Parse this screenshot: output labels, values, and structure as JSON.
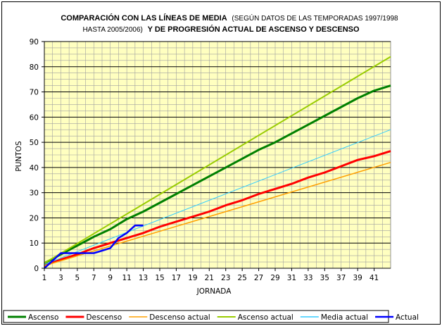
{
  "chart_data": {
    "type": "line",
    "title_part1": "COMPARACIÓN CON LAS LÍNEAS DE MEDIA",
    "title_part2": "(SEGÚN DATOS DE LAS TEMPORADAS 1997/1998",
    "title_part3": "HASTA 2005/2006)",
    "title_part4": "Y DE PROGRESIÓN ACTUAL DE ASCENSO Y DESCENSO",
    "xlabel": "JORNADA",
    "ylabel": "PUNTOS",
    "xlim": [
      1,
      43
    ],
    "ylim": [
      0,
      90
    ],
    "x_ticks": [
      1,
      3,
      5,
      7,
      9,
      11,
      13,
      15,
      17,
      19,
      21,
      23,
      25,
      27,
      29,
      31,
      33,
      35,
      37,
      39,
      41
    ],
    "y_ticks": [
      0,
      10,
      20,
      30,
      40,
      50,
      60,
      70,
      80,
      90
    ],
    "plot_background": "#ffffc0",
    "grid": true,
    "legend_position": "bottom",
    "series": [
      {
        "name": "Ascenso",
        "color": "#008000",
        "width": 3,
        "x": [
          1,
          3,
          5,
          7,
          9,
          11,
          13,
          15,
          17,
          19,
          21,
          23,
          25,
          27,
          29,
          31,
          33,
          35,
          37,
          39,
          41,
          43
        ],
        "y": [
          2,
          5.5,
          9,
          12.5,
          15.5,
          19.5,
          22.5,
          26,
          29.5,
          33,
          36.5,
          40,
          43.5,
          47,
          50,
          53.5,
          57,
          60.5,
          64,
          67.5,
          70.5,
          72.5
        ]
      },
      {
        "name": "Descenso",
        "color": "#ff0000",
        "width": 3,
        "x": [
          1,
          3,
          5,
          7,
          9,
          11,
          13,
          15,
          17,
          19,
          21,
          23,
          25,
          27,
          29,
          31,
          33,
          35,
          37,
          39,
          41,
          43
        ],
        "y": [
          1,
          3.5,
          5.5,
          8,
          10,
          12,
          14,
          16.5,
          18.5,
          20.5,
          22.5,
          25,
          27,
          29.5,
          31.5,
          33.5,
          36,
          38,
          40.5,
          43,
          44.5,
          46.5
        ]
      },
      {
        "name": "Descenso actual",
        "color": "#ffa000",
        "width": 1.5,
        "x": [
          1,
          43
        ],
        "y": [
          1,
          42
        ]
      },
      {
        "name": "Ascenso actual",
        "color": "#99cc00",
        "width": 2,
        "x": [
          1,
          43
        ],
        "y": [
          2,
          84
        ]
      },
      {
        "name": "Media actual",
        "color": "#33ccff",
        "width": 1,
        "x": [
          1,
          43
        ],
        "y": [
          1.5,
          55
        ]
      },
      {
        "name": "Actual",
        "color": "#0000ff",
        "width": 2.5,
        "x": [
          1,
          2,
          3,
          4,
          5,
          6,
          7,
          8,
          9,
          10,
          11,
          12,
          13
        ],
        "y": [
          0,
          3,
          6,
          6,
          6,
          6,
          6,
          7,
          8,
          12,
          14,
          17,
          17
        ]
      }
    ]
  }
}
